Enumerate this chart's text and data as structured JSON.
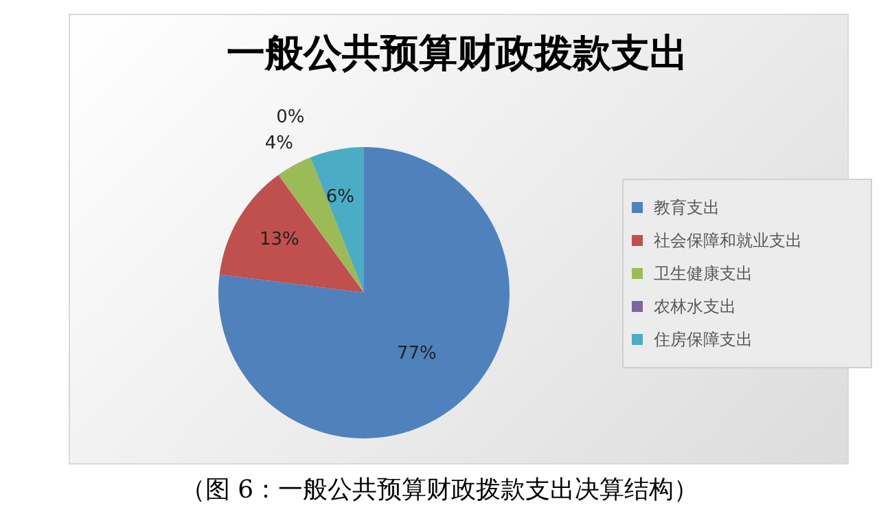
{
  "chart_data": {
    "type": "pie",
    "title": "一般公共预算财政拨款支出",
    "categories": [
      "教育支出",
      "社会保障和就业支出",
      "卫生健康支出",
      "农林水支出",
      "住房保障支出"
    ],
    "values": [
      77,
      13,
      4,
      0,
      6
    ],
    "colors": [
      "#4f81bd",
      "#c0504d",
      "#9bbb59",
      "#8064a2",
      "#4bacc6"
    ],
    "value_labels": [
      "77%",
      "13%",
      "4%",
      "0%",
      "6%"
    ],
    "legend": "right",
    "annotations": [
      "（图 6：一般公共预算财政拨款支出决算结构）"
    ]
  }
}
